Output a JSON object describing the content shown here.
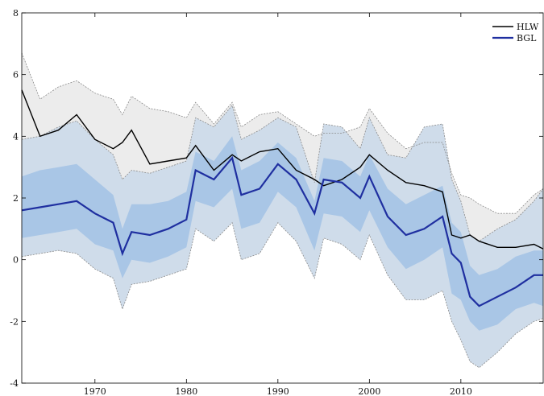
{
  "chart_data": {
    "type": "line",
    "xlim": [
      1962,
      2019
    ],
    "ylim": [
      -4,
      8
    ],
    "x_ticks": [
      1970,
      1980,
      1990,
      2000,
      2010
    ],
    "y_ticks": [
      -4,
      -2,
      0,
      2,
      4,
      6,
      8
    ],
    "x_tick_labels": [
      "1970",
      "1980",
      "1990",
      "2000",
      "2010"
    ],
    "y_tick_labels": [
      "-4",
      "-2",
      "0",
      "2",
      "4",
      "6",
      "8"
    ],
    "grid": false,
    "legend_placement": "top-right",
    "colors": {
      "hlw": "#000000",
      "bgl": "#1f2fa0",
      "band_inner": "#a9c6e6",
      "band_middle": "#cfdcea",
      "band_outer": "#ececec",
      "band_edge": "#8a8a8a"
    },
    "x": [
      1962,
      1964,
      1966,
      1968,
      1970,
      1972,
      1973,
      1974,
      1976,
      1978,
      1980,
      1981,
      1983,
      1985,
      1986,
      1988,
      1990,
      1992,
      1994,
      1995,
      1997,
      1999,
      2000,
      2002,
      2004,
      2006,
      2008,
      2009,
      2010,
      2011,
      2012,
      2014,
      2016,
      2018,
      2019
    ],
    "series": [
      {
        "name": "HLW",
        "values": [
          5.5,
          4.0,
          4.2,
          4.7,
          3.9,
          3.6,
          3.8,
          4.2,
          3.1,
          3.2,
          3.3,
          3.7,
          2.9,
          3.4,
          3.2,
          3.5,
          3.6,
          2.9,
          2.6,
          2.4,
          2.6,
          3.0,
          3.4,
          2.9,
          2.5,
          2.4,
          2.2,
          0.8,
          0.7,
          0.8,
          0.6,
          0.4,
          0.4,
          0.5,
          0.35
        ]
      },
      {
        "name": "BGL",
        "values": [
          1.6,
          1.7,
          1.8,
          1.9,
          1.5,
          1.2,
          0.2,
          0.9,
          0.8,
          1.0,
          1.3,
          2.9,
          2.6,
          3.3,
          2.1,
          2.3,
          3.1,
          2.6,
          1.5,
          2.6,
          2.5,
          2.0,
          2.7,
          1.4,
          0.8,
          1.0,
          1.4,
          0.2,
          -0.1,
          -1.2,
          -1.5,
          -1.2,
          -0.9,
          -0.5,
          -0.5
        ]
      }
    ],
    "bands": {
      "outer_upper": [
        6.7,
        5.2,
        5.6,
        5.8,
        5.4,
        5.2,
        4.7,
        5.3,
        4.9,
        4.8,
        4.6,
        5.1,
        4.4,
        5.1,
        4.3,
        4.7,
        4.8,
        4.4,
        4.0,
        4.1,
        4.1,
        4.3,
        4.9,
        4.1,
        3.6,
        3.8,
        3.8,
        2.8,
        2.1,
        2.0,
        1.8,
        1.5,
        1.5,
        2.1,
        2.3
      ],
      "middle_upper": [
        3.9,
        4.0,
        4.3,
        4.5,
        3.9,
        3.4,
        2.6,
        2.9,
        2.8,
        3.0,
        3.2,
        4.6,
        4.3,
        5.0,
        3.9,
        4.2,
        4.6,
        4.3,
        2.5,
        4.4,
        4.3,
        3.6,
        4.6,
        3.4,
        3.3,
        4.3,
        4.4,
        2.6,
        1.9,
        0.8,
        0.6,
        1.0,
        1.3,
        1.9,
        2.3
      ],
      "inner_upper": [
        2.7,
        2.9,
        3.0,
        3.1,
        2.6,
        2.1,
        1.0,
        1.8,
        1.8,
        1.9,
        2.2,
        3.5,
        3.2,
        4.0,
        2.9,
        3.2,
        3.8,
        3.3,
        1.9,
        3.3,
        3.2,
        2.7,
        3.4,
        2.3,
        1.8,
        2.1,
        2.4,
        1.2,
        0.9,
        -0.2,
        -0.5,
        -0.3,
        0.1,
        0.3,
        0.3
      ],
      "inner_lower": [
        0.7,
        0.8,
        0.9,
        1.0,
        0.5,
        0.3,
        -0.6,
        0.0,
        -0.1,
        0.1,
        0.4,
        1.9,
        1.7,
        2.3,
        1.0,
        1.2,
        2.2,
        1.7,
        0.3,
        1.5,
        1.4,
        0.9,
        1.6,
        0.4,
        -0.3,
        0.0,
        0.4,
        -1.1,
        -1.3,
        -2.0,
        -2.3,
        -2.1,
        -1.6,
        -1.4,
        -1.5
      ],
      "middle_lower": [
        0.1,
        0.2,
        0.3,
        0.2,
        -0.3,
        -0.6,
        -1.6,
        -0.8,
        -0.7,
        -0.5,
        -0.3,
        1.0,
        0.6,
        1.2,
        0.0,
        0.2,
        1.2,
        0.6,
        -0.6,
        0.7,
        0.5,
        0.0,
        0.8,
        -0.5,
        -1.3,
        -1.3,
        -1.0,
        -2.0,
        -2.6,
        -3.3,
        -3.5,
        -3.0,
        -2.4,
        -2.0,
        -1.9
      ]
    },
    "legend": [
      {
        "label": "HLW",
        "series": "HLW"
      },
      {
        "label": "BGL",
        "series": "BGL"
      }
    ]
  }
}
